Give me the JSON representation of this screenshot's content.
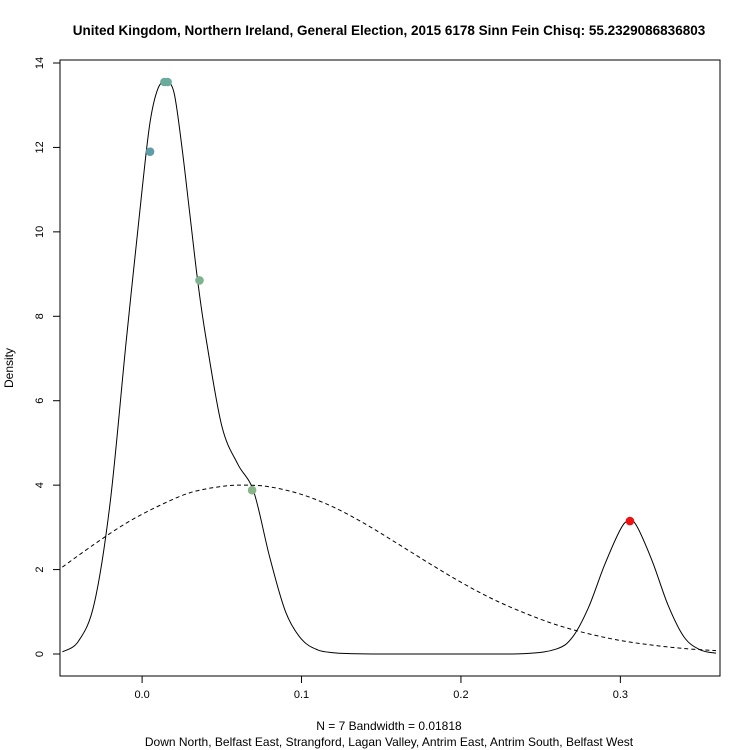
{
  "chart_data": {
    "type": "line",
    "title": "United Kingdom, Northern Ireland, General Election, 2015 6178 Sinn Fein Chisq: 55.2329086836803",
    "xlabel": "N = 7   Bandwidth = 0.01818",
    "sublabel": "Down North, Belfast East, Strangford, Lagan Valley, Antrim East, Antrim South, Belfast West",
    "ylabel": "Density",
    "xlim": [
      -0.0515,
      0.3625
    ],
    "ylim": [
      0,
      14
    ],
    "x_ticks": [
      0.0,
      0.1,
      0.2,
      0.3
    ],
    "x_tick_labels": [
      "0.0",
      "0.1",
      "0.2",
      "0.3"
    ],
    "y_ticks": [
      0,
      2,
      4,
      6,
      8,
      10,
      12,
      14
    ],
    "y_tick_labels": [
      "0",
      "2",
      "4",
      "6",
      "8",
      "10",
      "12",
      "14"
    ],
    "grid": false,
    "series": [
      {
        "style": "solid",
        "color": "#000000",
        "x": [
          -0.05,
          -0.04,
          -0.03,
          -0.02,
          -0.01,
          0.0,
          0.005,
          0.01,
          0.015,
          0.02,
          0.025,
          0.03,
          0.035,
          0.04,
          0.05,
          0.06,
          0.07,
          0.08,
          0.09,
          0.1,
          0.11,
          0.12,
          0.13,
          0.15,
          0.2,
          0.24,
          0.26,
          0.27,
          0.28,
          0.29,
          0.3,
          0.305,
          0.31,
          0.32,
          0.33,
          0.34,
          0.35,
          0.36
        ],
        "y": [
          0.05,
          0.3,
          1.2,
          3.6,
          7.4,
          11.0,
          12.6,
          13.4,
          13.55,
          13.3,
          12.0,
          10.4,
          8.8,
          7.5,
          5.4,
          4.5,
          3.85,
          2.3,
          1.0,
          0.35,
          0.1,
          0.03,
          0.01,
          0.0,
          0.0,
          0.01,
          0.12,
          0.4,
          1.1,
          2.1,
          2.95,
          3.15,
          3.05,
          2.2,
          1.15,
          0.4,
          0.1,
          0.02
        ]
      },
      {
        "style": "dashed",
        "color": "#000000",
        "x": [
          -0.05,
          -0.03,
          -0.01,
          0.01,
          0.03,
          0.05,
          0.065,
          0.08,
          0.1,
          0.12,
          0.14,
          0.16,
          0.18,
          0.2,
          0.22,
          0.24,
          0.26,
          0.28,
          0.3,
          0.32,
          0.34,
          0.36
        ],
        "y": [
          2.06,
          2.6,
          3.1,
          3.5,
          3.82,
          3.97,
          4.0,
          3.96,
          3.78,
          3.48,
          3.08,
          2.62,
          2.15,
          1.7,
          1.3,
          0.97,
          0.69,
          0.48,
          0.32,
          0.21,
          0.13,
          0.08
        ]
      }
    ],
    "points": [
      {
        "x": 0.005,
        "y": 11.9,
        "color": "#5f9ea8"
      },
      {
        "x": 0.014,
        "y": 13.55,
        "color": "#6aab9e"
      },
      {
        "x": 0.016,
        "y": 13.55,
        "color": "#6aab9e"
      },
      {
        "x": 0.036,
        "y": 8.85,
        "color": "#7eb38f"
      },
      {
        "x": 0.069,
        "y": 3.88,
        "color": "#88b58a"
      },
      {
        "x": 0.306,
        "y": 3.15,
        "color": "#ee1111"
      }
    ]
  }
}
